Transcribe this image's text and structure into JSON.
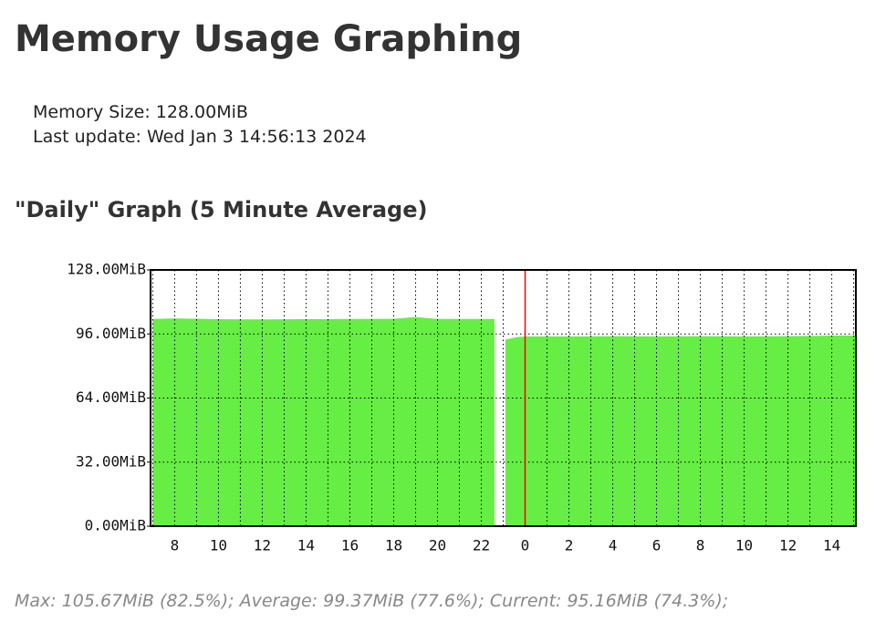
{
  "header": {
    "title": "Memory Usage Graphing"
  },
  "info": {
    "lines": [
      "Memory Size: 128.00MiB",
      "Last update: Wed Jan 3 14:56:13 2024"
    ]
  },
  "section_title": "\"Daily\" Graph (5 Minute Average)",
  "chart_data": {
    "type": "area",
    "x": [
      7,
      8,
      10,
      12,
      14,
      16,
      18,
      19,
      20,
      22,
      22.6,
      22.8,
      23.1,
      23.6,
      24,
      26,
      28,
      30,
      32,
      34,
      36,
      38,
      39.1
    ],
    "series": [
      {
        "color": "#66ee44",
        "values": [
          103.5,
          103.8,
          103.4,
          103.3,
          103.4,
          103.5,
          103.6,
          104.5,
          103.5,
          103.5,
          103.5,
          null,
          93.2,
          94.4,
          94.8,
          94.8,
          94.9,
          94.8,
          94.9,
          94.8,
          94.9,
          95.2,
          95.2
        ]
      }
    ],
    "xlim": [
      6.9,
      39.1
    ],
    "ylim": [
      0,
      128
    ],
    "xticks": [
      8,
      10,
      12,
      14,
      16,
      18,
      20,
      22,
      {
        "value": 24,
        "label": "0"
      },
      {
        "value": 26,
        "label": "2"
      },
      {
        "value": 28,
        "label": "4"
      },
      {
        "value": 30,
        "label": "6"
      },
      {
        "value": 32,
        "label": "8"
      },
      {
        "value": 34,
        "label": "10"
      },
      {
        "value": 36,
        "label": "12"
      },
      {
        "value": 38,
        "label": "14"
      }
    ],
    "x_minor_ticks": [
      7,
      9,
      11,
      13,
      15,
      17,
      19,
      21,
      23,
      25,
      27,
      29,
      31,
      33,
      35,
      37,
      39
    ],
    "yticks": [
      {
        "value": 0,
        "label": "0.00MiB"
      },
      {
        "value": 32,
        "label": "32.00MiB"
      },
      {
        "value": 64,
        "label": "64.00MiB"
      },
      {
        "value": 96,
        "label": "96.00MiB"
      },
      {
        "value": 128,
        "label": "128.00MiB"
      }
    ],
    "grid": true,
    "marker_x": 24,
    "marker_color": "#ff0000"
  },
  "footer": "Max: 105.67MiB (82.5%); Average: 99.37MiB (77.6%); Current: 95.16MiB (74.3%);"
}
